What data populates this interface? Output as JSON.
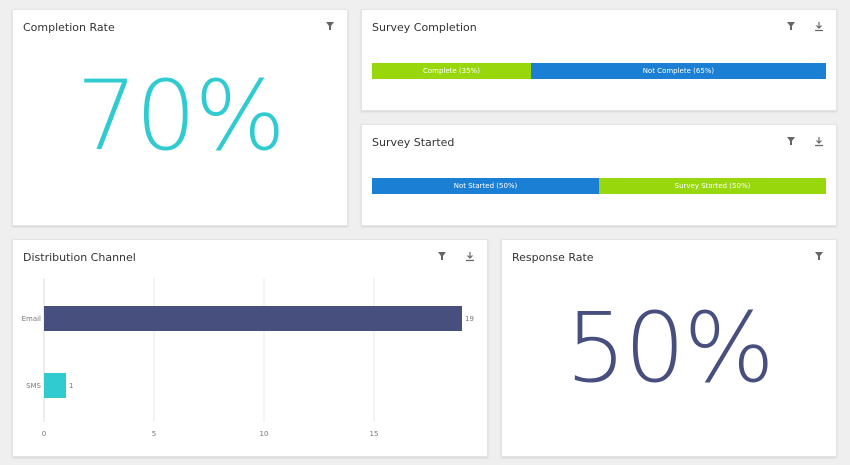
{
  "colors": {
    "teal": "#2fcbd0",
    "navy": "#474f7e",
    "green": "#97d70b",
    "blue": "#1b7fd3"
  },
  "completion_rate": {
    "title": "Completion Rate",
    "value": "70%",
    "filter_icon": "filter-icon"
  },
  "survey_completion": {
    "title": "Survey Completion",
    "segments": [
      {
        "label": "Complete (35%)",
        "percent": 35
      },
      {
        "label": "Not Complete (65%)",
        "percent": 65
      }
    ]
  },
  "survey_started": {
    "title": "Survey Started",
    "segments": [
      {
        "label": "Not Started (50%)",
        "percent": 50
      },
      {
        "label": "Survey Started (50%)",
        "percent": 50
      }
    ]
  },
  "response_rate": {
    "title": "Response Rate",
    "value": "50%"
  },
  "distribution_channel": {
    "title": "Distribution Channel"
  },
  "chart_data": {
    "type": "bar",
    "orientation": "horizontal",
    "title": "Distribution Channel",
    "categories": [
      "Email",
      "SMS"
    ],
    "values": [
      19,
      1
    ],
    "xticks": [
      "0",
      "5",
      "10",
      "15"
    ],
    "xlim": [
      0,
      19
    ],
    "grid": true
  }
}
